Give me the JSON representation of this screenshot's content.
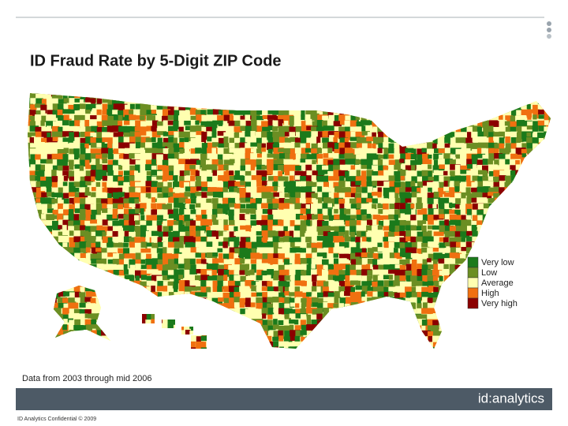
{
  "header": {
    "title": "ID Fraud Rate by 5-Digit ZIP Code"
  },
  "legend": {
    "items": [
      {
        "label": "Very low",
        "color": "#1b7a1b"
      },
      {
        "label": "Low",
        "color": "#6b8e23"
      },
      {
        "label": "Average",
        "color": "#ffffb0"
      },
      {
        "label": "High",
        "color": "#f07010"
      },
      {
        "label": "Very high",
        "color": "#8b0000"
      }
    ]
  },
  "note": "Data from 2003 through mid 2006",
  "footer": {
    "logo": "id:analytics",
    "confidential": "ID Analytics Confidential © 2009"
  }
}
